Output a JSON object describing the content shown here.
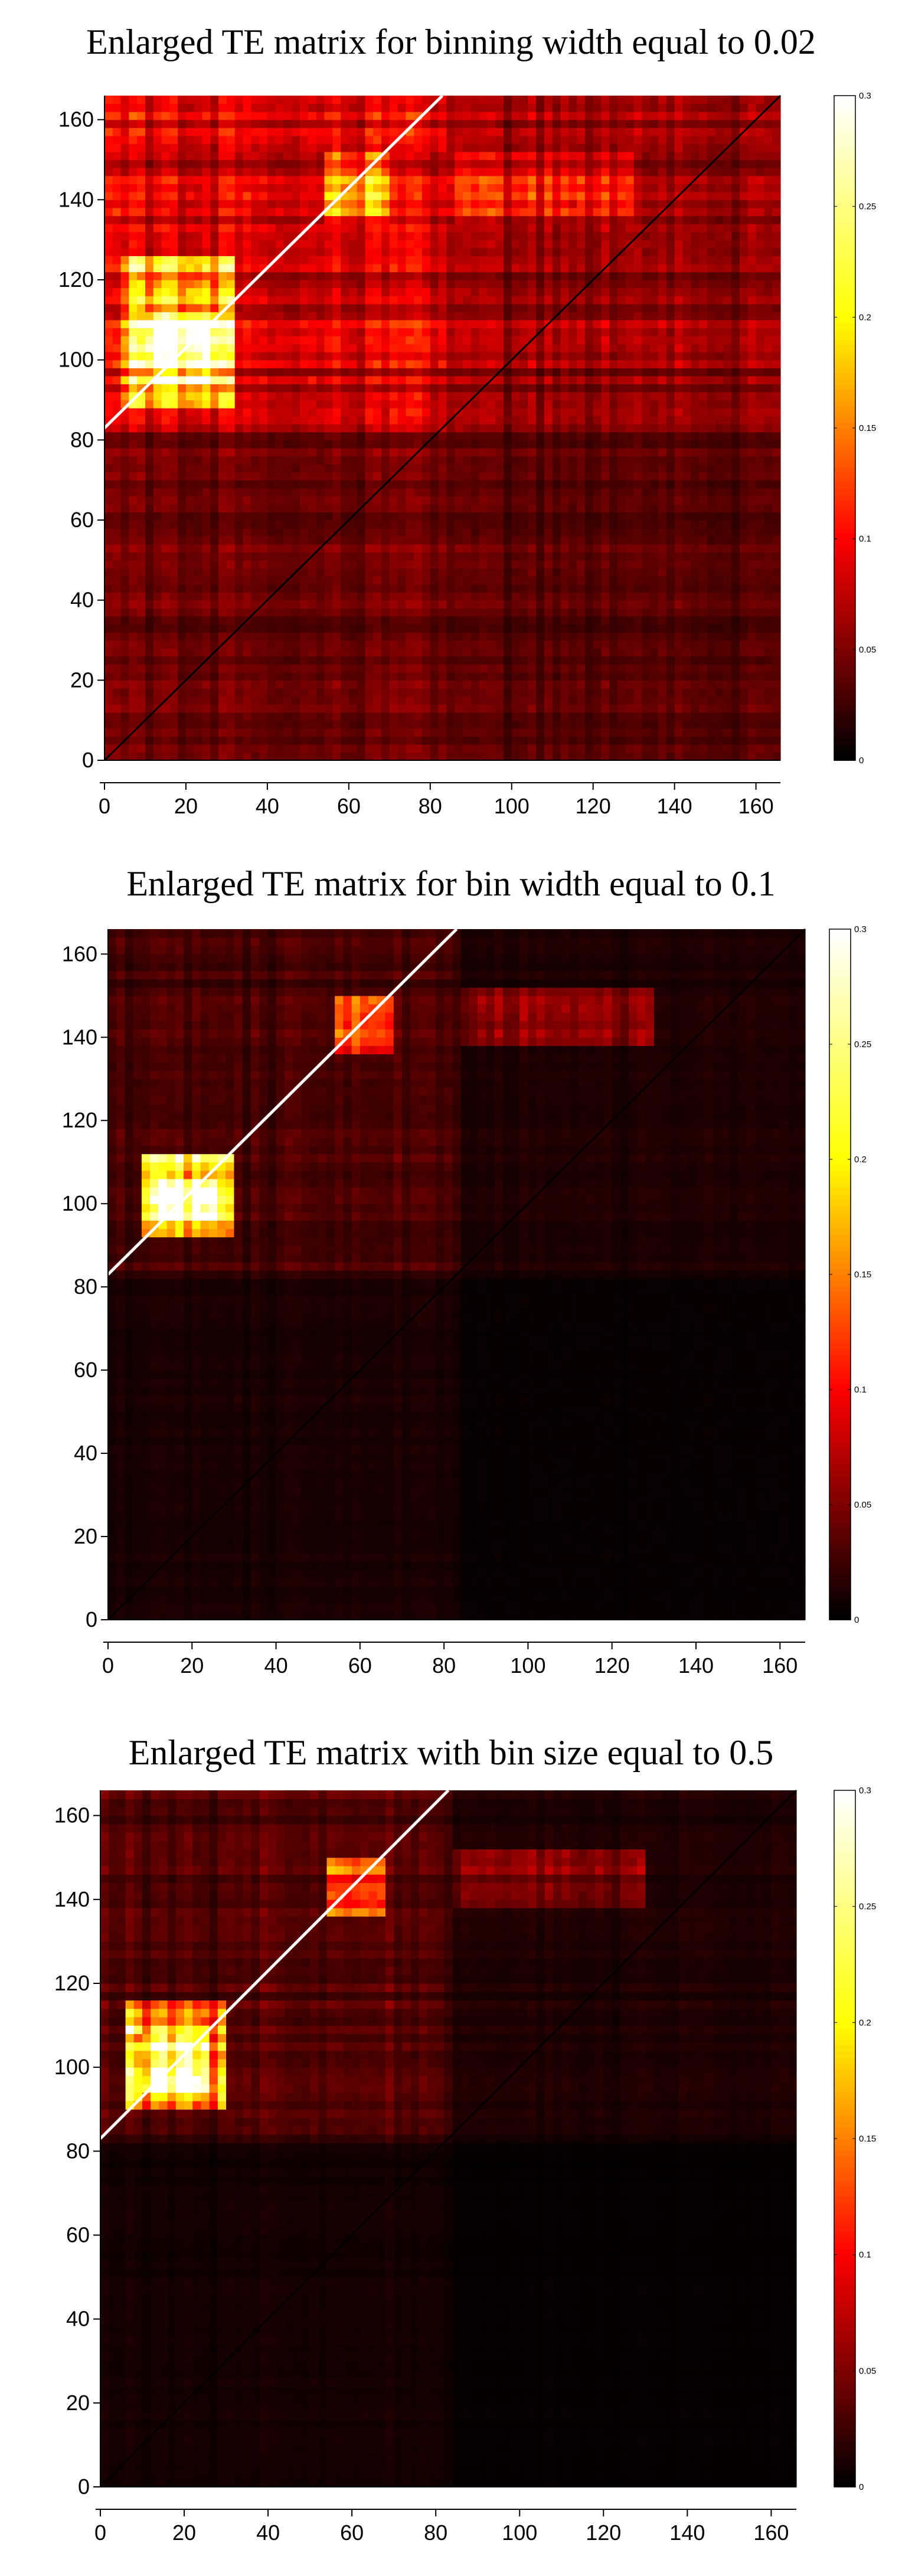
{
  "colormap": {
    "name": "hot",
    "stops": [
      "#000000",
      "#ff0000",
      "#ffff00",
      "#ffffff"
    ]
  },
  "chart_data": [
    {
      "type": "heatmap",
      "title": "Enlarged TE matrix for binning width equal to 0.02",
      "xlabel": "",
      "ylabel": "",
      "xlim": [
        0,
        166
      ],
      "ylim": [
        0,
        166
      ],
      "xticks": [
        0,
        20,
        40,
        60,
        80,
        100,
        120,
        140,
        160
      ],
      "yticks": [
        0,
        20,
        40,
        60,
        80,
        100,
        120,
        140,
        160
      ],
      "xtick_labels": [
        "0",
        "20",
        "40",
        "60",
        "80",
        "100",
        "120",
        "140",
        "160"
      ],
      "ytick_labels": [
        "0",
        "20",
        "40",
        "60",
        "80",
        "100",
        "120",
        "140",
        "160"
      ],
      "colorbar": {
        "range": [
          0,
          0.3
        ],
        "ticks": [
          0,
          0.05,
          0.1,
          0.15,
          0.2,
          0.25,
          0.3
        ],
        "tick_labels": [
          "0",
          "0.05",
          "0.1",
          "0.15",
          "0.2",
          "0.25",
          "0.3"
        ]
      },
      "matrix_summary": {
        "size": 166,
        "background_level": 0.05,
        "region_levels": [
          {
            "x": [
              0,
              83
            ],
            "y": [
              83,
              166
            ],
            "value": 0.09
          },
          {
            "x": [
              83,
              166
            ],
            "y": [
              83,
              166
            ],
            "value": 0.06
          },
          {
            "x": [
              0,
              83
            ],
            "y": [
              0,
              83
            ],
            "value": 0.045
          },
          {
            "x": [
              83,
              166
            ],
            "y": [
              0,
              83
            ],
            "value": 0.035
          },
          {
            "x": [
              5,
              32
            ],
            "y": [
              88,
              126
            ],
            "value": 0.2
          },
          {
            "x": [
              10,
              28
            ],
            "y": [
              93,
              112
            ],
            "value": 0.3
          },
          {
            "x": [
              54,
              70
            ],
            "y": [
              135,
              152
            ],
            "value": 0.17
          },
          {
            "x": [
              85,
              130
            ],
            "y": [
              135,
              152
            ],
            "value": 0.1
          }
        ],
        "diagonal_value": 0.3,
        "diagonal_range": [
          83,
          166
        ]
      }
    },
    {
      "type": "heatmap",
      "title": "Enlarged TE matrix for bin width equal to 0.1",
      "xlabel": "",
      "ylabel": "",
      "xlim": [
        0,
        166
      ],
      "ylim": [
        0,
        166
      ],
      "xticks": [
        0,
        20,
        40,
        60,
        80,
        100,
        120,
        140,
        160
      ],
      "yticks": [
        0,
        20,
        40,
        60,
        80,
        100,
        120,
        140,
        160
      ],
      "xtick_labels": [
        "0",
        "20",
        "40",
        "60",
        "80",
        "100",
        "120",
        "140",
        "160"
      ],
      "ytick_labels": [
        "0",
        "20",
        "40",
        "60",
        "80",
        "100",
        "120",
        "140",
        "160"
      ],
      "colorbar": {
        "range": [
          0,
          0.3
        ],
        "ticks": [
          0,
          0.05,
          0.1,
          0.15,
          0.2,
          0.25,
          0.3
        ],
        "tick_labels": [
          "0",
          "0.05",
          "0.1",
          "0.15",
          "0.2",
          "0.25",
          "0.3"
        ]
      },
      "matrix_summary": {
        "size": 166,
        "background_level": 0.005,
        "region_levels": [
          {
            "x": [
              0,
              83
            ],
            "y": [
              83,
              166
            ],
            "value": 0.03
          },
          {
            "x": [
              83,
              166
            ],
            "y": [
              83,
              166
            ],
            "value": 0.012
          },
          {
            "x": [
              0,
              83
            ],
            "y": [
              0,
              83
            ],
            "value": 0.01
          },
          {
            "x": [
              83,
              166
            ],
            "y": [
              0,
              83
            ],
            "value": 0.003
          },
          {
            "x": [
              8,
              30
            ],
            "y": [
              92,
              112
            ],
            "value": 0.22
          },
          {
            "x": [
              12,
              26
            ],
            "y": [
              96,
              106
            ],
            "value": 0.3
          },
          {
            "x": [
              54,
              68
            ],
            "y": [
              136,
              150
            ],
            "value": 0.12
          },
          {
            "x": [
              85,
              130
            ],
            "y": [
              138,
              152
            ],
            "value": 0.05
          }
        ],
        "diagonal_value": 0.3,
        "diagonal_range": [
          83,
          166
        ]
      }
    },
    {
      "type": "heatmap",
      "title": "Enlarged TE matrix with bin size equal to 0.5",
      "xlabel": "",
      "ylabel": "",
      "xlim": [
        0,
        166
      ],
      "ylim": [
        0,
        166
      ],
      "xticks": [
        0,
        20,
        40,
        60,
        80,
        100,
        120,
        140,
        160
      ],
      "yticks": [
        0,
        20,
        40,
        60,
        80,
        100,
        120,
        140,
        160
      ],
      "xtick_labels": [
        "0",
        "20",
        "40",
        "60",
        "80",
        "100",
        "120",
        "140",
        "160"
      ],
      "ytick_labels": [
        "0",
        "20",
        "40",
        "60",
        "80",
        "100",
        "120",
        "140",
        "160"
      ],
      "colorbar": {
        "range": [
          0,
          0.3
        ],
        "ticks": [
          0,
          0.05,
          0.1,
          0.15,
          0.2,
          0.25,
          0.3
        ],
        "tick_labels": [
          "0",
          "0.05",
          "0.1",
          "0.15",
          "0.2",
          "0.25",
          "0.3"
        ]
      },
      "matrix_summary": {
        "size": 166,
        "background_level": 0.004,
        "region_levels": [
          {
            "x": [
              0,
              83
            ],
            "y": [
              83,
              166
            ],
            "value": 0.035
          },
          {
            "x": [
              83,
              166
            ],
            "y": [
              83,
              166
            ],
            "value": 0.012
          },
          {
            "x": [
              0,
              83
            ],
            "y": [
              0,
              83
            ],
            "value": 0.008
          },
          {
            "x": [
              83,
              166
            ],
            "y": [
              0,
              83
            ],
            "value": 0.002
          },
          {
            "x": [
              6,
              30
            ],
            "y": [
              90,
              115
            ],
            "value": 0.2
          },
          {
            "x": [
              10,
              26
            ],
            "y": [
              94,
              108
            ],
            "value": 0.3
          },
          {
            "x": [
              54,
              68
            ],
            "y": [
              136,
              150
            ],
            "value": 0.14
          },
          {
            "x": [
              85,
              130
            ],
            "y": [
              138,
              152
            ],
            "value": 0.05
          }
        ],
        "diagonal_value": 0.3,
        "diagonal_range": [
          83,
          166
        ]
      }
    }
  ]
}
